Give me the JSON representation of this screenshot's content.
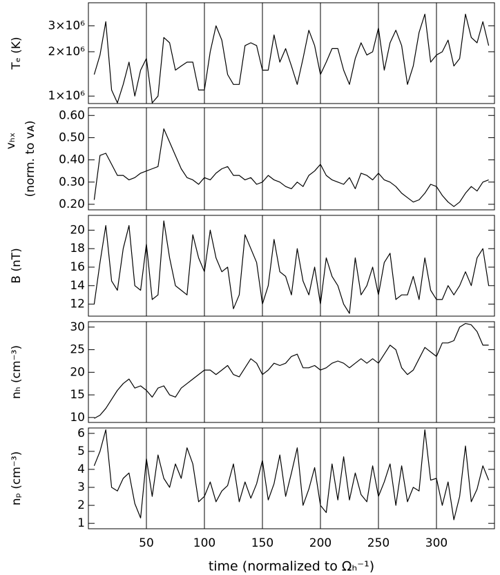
{
  "chart_data": [
    {
      "type": "line",
      "ylabel": "Tₑ (K)",
      "log": true,
      "xlim": [
        0,
        350
      ],
      "xticks": [
        50,
        100,
        150,
        200,
        250,
        300
      ],
      "ylim": [
        890000,
        4300000
      ],
      "yticks": [
        {
          "value": 1000000,
          "label": "1×10⁶"
        },
        {
          "value": 2000000,
          "label": "2×10⁶"
        },
        {
          "value": 3000000,
          "label": "3×10⁶"
        }
      ],
      "x": [
        5,
        10,
        15,
        20,
        25,
        30,
        35,
        40,
        45,
        50,
        55,
        60,
        65,
        70,
        75,
        80,
        85,
        90,
        95,
        100,
        105,
        110,
        115,
        120,
        125,
        130,
        135,
        140,
        145,
        150,
        155,
        160,
        165,
        170,
        175,
        180,
        185,
        190,
        195,
        200,
        205,
        210,
        215,
        220,
        225,
        230,
        235,
        240,
        245,
        250,
        255,
        260,
        265,
        270,
        275,
        280,
        285,
        290,
        295,
        300,
        305,
        310,
        315,
        320,
        325,
        330,
        335,
        340,
        345
      ],
      "series": [
        {
          "color": "#000000",
          "values": [
            1400000,
            1900000,
            3200000,
            1100000,
            900000,
            1200000,
            1700000,
            1000000,
            1500000,
            1800000,
            900000,
            1000000,
            2500000,
            2300000,
            1500000,
            1600000,
            1700000,
            1700000,
            1100000,
            1100000,
            2000000,
            3000000,
            2400000,
            1400000,
            1200000,
            1200000,
            2200000,
            2300000,
            2200000,
            1500000,
            1500000,
            2600000,
            1700000,
            2100000,
            1600000,
            1200000,
            1800000,
            2800000,
            2200000,
            1400000,
            1700000,
            2100000,
            2100000,
            1500000,
            1200000,
            1800000,
            2300000,
            1900000,
            2000000,
            2900000,
            1500000,
            2300000,
            2800000,
            2200000,
            1200000,
            1600000,
            2700000,
            3600000,
            1700000,
            1900000,
            2000000,
            2400000,
            1600000,
            1800000,
            3600000,
            2500000,
            2300000,
            3200000,
            2200000
          ]
        }
      ]
    },
    {
      "type": "line",
      "ylabel": [
        "vₕₓ",
        "(norm. to vᴀ)"
      ],
      "xlim": [
        0,
        350
      ],
      "xticks": [
        50,
        100,
        150,
        200,
        250,
        300
      ],
      "ylim": [
        0.175,
        0.635
      ],
      "yticks": [
        {
          "value": 0.2,
          "label": "0.20"
        },
        {
          "value": 0.3,
          "label": "0.30"
        },
        {
          "value": 0.4,
          "label": "0.40"
        },
        {
          "value": 0.5,
          "label": "0.50"
        },
        {
          "value": 0.6,
          "label": "0.60"
        }
      ],
      "x": [
        5,
        10,
        15,
        20,
        25,
        30,
        35,
        40,
        45,
        50,
        55,
        60,
        65,
        70,
        75,
        80,
        85,
        90,
        95,
        100,
        105,
        110,
        115,
        120,
        125,
        130,
        135,
        140,
        145,
        150,
        155,
        160,
        165,
        170,
        175,
        180,
        185,
        190,
        195,
        200,
        205,
        210,
        215,
        220,
        225,
        230,
        235,
        240,
        245,
        250,
        255,
        260,
        265,
        270,
        275,
        280,
        285,
        290,
        295,
        300,
        305,
        310,
        315,
        320,
        325,
        330,
        335,
        340,
        345
      ],
      "series": [
        {
          "color": "#000000",
          "values": [
            0.22,
            0.42,
            0.43,
            0.38,
            0.33,
            0.33,
            0.31,
            0.32,
            0.34,
            0.35,
            0.36,
            0.37,
            0.54,
            0.48,
            0.42,
            0.36,
            0.32,
            0.31,
            0.29,
            0.32,
            0.31,
            0.34,
            0.36,
            0.37,
            0.33,
            0.33,
            0.31,
            0.32,
            0.29,
            0.3,
            0.33,
            0.31,
            0.3,
            0.28,
            0.27,
            0.3,
            0.28,
            0.33,
            0.35,
            0.38,
            0.33,
            0.31,
            0.3,
            0.29,
            0.32,
            0.27,
            0.34,
            0.33,
            0.31,
            0.34,
            0.31,
            0.3,
            0.28,
            0.25,
            0.23,
            0.21,
            0.22,
            0.25,
            0.29,
            0.28,
            0.24,
            0.21,
            0.19,
            0.21,
            0.25,
            0.28,
            0.26,
            0.3,
            0.31
          ]
        }
      ]
    },
    {
      "type": "line",
      "ylabel": "B (nT)",
      "xlim": [
        0,
        350
      ],
      "xticks": [
        50,
        100,
        150,
        200,
        250,
        300
      ],
      "ylim": [
        10.7,
        21.6
      ],
      "yticks": [
        12,
        14,
        16,
        18,
        20
      ],
      "x": [
        5,
        10,
        15,
        20,
        25,
        30,
        35,
        40,
        45,
        50,
        55,
        60,
        65,
        70,
        75,
        80,
        85,
        90,
        95,
        100,
        105,
        110,
        115,
        120,
        125,
        130,
        135,
        140,
        145,
        150,
        155,
        160,
        165,
        170,
        175,
        180,
        185,
        190,
        195,
        200,
        205,
        210,
        215,
        220,
        225,
        230,
        235,
        240,
        245,
        250,
        255,
        260,
        265,
        270,
        275,
        280,
        285,
        290,
        295,
        300,
        305,
        310,
        315,
        320,
        325,
        330,
        335,
        340,
        345
      ],
      "series": [
        {
          "color": "#000000",
          "values": [
            12,
            16.5,
            20.5,
            14.5,
            13.5,
            18,
            20.5,
            14,
            13.5,
            18.5,
            12.5,
            13,
            21,
            17,
            14,
            13.5,
            13,
            19.5,
            17,
            15.5,
            20,
            17,
            15.5,
            16,
            11.5,
            13,
            19.5,
            18,
            16.5,
            12,
            14,
            19,
            15.5,
            15,
            13,
            18,
            14.5,
            13,
            16,
            12,
            17,
            15,
            14,
            12,
            11,
            17,
            13,
            14,
            16,
            13,
            16.5,
            17.5,
            12.5,
            13,
            13,
            15,
            12.5,
            17,
            13.5,
            12.5,
            12.5,
            14,
            13,
            14,
            15.5,
            14,
            17,
            18,
            14
          ]
        }
      ]
    },
    {
      "type": "line",
      "ylabel": "nₕ (cm⁻³)",
      "xlim": [
        0,
        350
      ],
      "xticks": [
        50,
        100,
        150,
        200,
        250,
        300
      ],
      "ylim": [
        8.9,
        31.2
      ],
      "yticks": [
        10,
        15,
        20,
        25,
        30
      ],
      "x": [
        5,
        10,
        15,
        20,
        25,
        30,
        35,
        40,
        45,
        50,
        55,
        60,
        65,
        70,
        75,
        80,
        85,
        90,
        95,
        100,
        105,
        110,
        115,
        120,
        125,
        130,
        135,
        140,
        145,
        150,
        155,
        160,
        165,
        170,
        175,
        180,
        185,
        190,
        195,
        200,
        205,
        210,
        215,
        220,
        225,
        230,
        235,
        240,
        245,
        250,
        255,
        260,
        265,
        270,
        275,
        280,
        285,
        290,
        295,
        300,
        305,
        310,
        315,
        320,
        325,
        330,
        335,
        340,
        345
      ],
      "series": [
        {
          "color": "#000000",
          "values": [
            9.8,
            10.5,
            12,
            14,
            16,
            17.5,
            18.5,
            16.5,
            17,
            16,
            14.5,
            16.5,
            17,
            15,
            14.5,
            16.5,
            17.5,
            18.5,
            19.5,
            20.5,
            20.5,
            19.5,
            20.5,
            21.5,
            19.5,
            19,
            21,
            23,
            22,
            19.5,
            20.5,
            22,
            21.5,
            22,
            23.5,
            24,
            21,
            21,
            21.5,
            20.5,
            21,
            22,
            22.5,
            22,
            21,
            22,
            23,
            22,
            23,
            22,
            24,
            26,
            25,
            21,
            19.5,
            20.5,
            23,
            25.5,
            24.5,
            23.5,
            26.5,
            26.5,
            27,
            30,
            30.8,
            30.5,
            29,
            26,
            26
          ]
        }
      ]
    },
    {
      "type": "line",
      "ylabel": "nₚ (cm⁻³)",
      "xlabel": "time (normalized to Ωₕ⁻¹)",
      "xlim": [
        0,
        350
      ],
      "xticks": [
        50,
        100,
        150,
        200,
        250,
        300
      ],
      "ylim": [
        0.7,
        6.3
      ],
      "yticks": [
        1,
        2,
        3,
        4,
        5,
        6
      ],
      "x": [
        5,
        10,
        15,
        20,
        25,
        30,
        35,
        40,
        45,
        50,
        55,
        60,
        65,
        70,
        75,
        80,
        85,
        90,
        95,
        100,
        105,
        110,
        115,
        120,
        125,
        130,
        135,
        140,
        145,
        150,
        155,
        160,
        165,
        170,
        175,
        180,
        185,
        190,
        195,
        200,
        205,
        210,
        215,
        220,
        225,
        230,
        235,
        240,
        245,
        250,
        255,
        260,
        265,
        270,
        275,
        280,
        285,
        290,
        295,
        300,
        305,
        310,
        315,
        320,
        325,
        330,
        335,
        340,
        345
      ],
      "series": [
        {
          "color": "#000000",
          "values": [
            4.2,
            5,
            6.2,
            3,
            2.8,
            3.5,
            3.8,
            2.1,
            1.3,
            4.6,
            2.5,
            4.8,
            3.5,
            3.0,
            4.3,
            3.5,
            5.2,
            4.3,
            2.2,
            2.5,
            3.3,
            2.2,
            2.8,
            3.1,
            4.3,
            2.2,
            3.3,
            2.4,
            3.2,
            4.5,
            2.3,
            3.2,
            4.8,
            2.5,
            3.8,
            5.2,
            2.0,
            2.9,
            4.1,
            2.0,
            1.6,
            4.3,
            2.3,
            4.7,
            2.3,
            3.8,
            2.6,
            2.2,
            4.2,
            2.5,
            3.3,
            4.3,
            2.0,
            4.2,
            2.2,
            3.0,
            2.8,
            6.2,
            3.4,
            3.5,
            2.0,
            3.3,
            1.2,
            2.5,
            5.3,
            2.2,
            2.9,
            4.2,
            3.4
          ]
        }
      ]
    }
  ]
}
